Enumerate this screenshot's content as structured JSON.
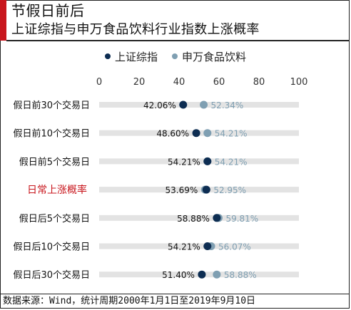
{
  "header": {
    "title": "节假日前后",
    "subtitle": "上证综指与申万食品饮料行业指数上涨概率"
  },
  "footer": {
    "source": "数据来源：Wind，统计周期2000年1月1日至2019年9月10日"
  },
  "colors": {
    "accent": "#c8161d",
    "series1": "#0d2d52",
    "series2": "#7f9fb2",
    "highlight_label": "#c8161d",
    "bar": "#e3e3e3"
  },
  "chart_data": {
    "type": "dot_plot",
    "xlim": [
      0,
      100
    ],
    "xticks": [
      0,
      20,
      40,
      60,
      80,
      100
    ],
    "grid": false,
    "legend_position": "top-center",
    "categories": [
      "假日前30个交易日",
      "假日前10个交易日",
      "假日前5个交易日",
      "日常上涨概率",
      "假日后5个交易日",
      "假日后10个交易日",
      "假日后30个交易日"
    ],
    "highlight_category_index": 3,
    "series": [
      {
        "name": "上证综指",
        "values": [
          42.06,
          48.6,
          54.21,
          53.69,
          58.88,
          54.21,
          51.4
        ],
        "labels": [
          "42.06%",
          "48.60%",
          "54.21%",
          "53.69%",
          "58.88%",
          "54.21%",
          "51.40%"
        ]
      },
      {
        "name": "申万食品饮料",
        "values": [
          52.34,
          54.21,
          54.21,
          52.95,
          59.81,
          56.07,
          58.88
        ],
        "labels": [
          "52.34%",
          "54.21%",
          "54.21%",
          "52.95%",
          "59.81%",
          "56.07%",
          "58.88%"
        ]
      }
    ]
  }
}
